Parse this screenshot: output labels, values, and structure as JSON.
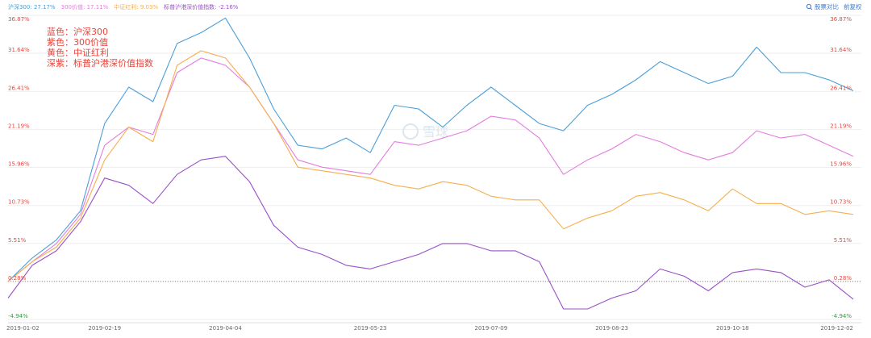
{
  "controls": {
    "compare_label": "股票对比",
    "adjust_label": "前复权"
  },
  "watermark": "雪球",
  "annotation": [
    "蓝色：沪深300",
    "紫色：300价值",
    "黄色：中证红利",
    "深紫：标普沪港深价值指数"
  ],
  "colors": {
    "blue": "#4a9fd8",
    "pink": "#e47ce0",
    "orange": "#f6ae4e",
    "purple": "#9950c8",
    "axis_red": "#e8453c",
    "axis_green": "#2f9e44",
    "grid": "#eeeeee"
  },
  "chart_data": {
    "type": "line",
    "x": [
      "2019-01-02",
      "2019-01-16",
      "2019-01-30",
      "2019-02-13",
      "2019-02-19",
      "2019-02-27",
      "2019-03-08",
      "2019-03-18",
      "2019-03-28",
      "2019-04-04",
      "2019-04-12",
      "2019-04-19",
      "2019-04-26",
      "2019-05-07",
      "2019-05-14",
      "2019-05-23",
      "2019-06-04",
      "2019-06-14",
      "2019-06-24",
      "2019-07-01",
      "2019-07-09",
      "2019-07-17",
      "2019-07-26",
      "2019-08-05",
      "2019-08-13",
      "2019-08-23",
      "2019-09-03",
      "2019-09-12",
      "2019-09-23",
      "2019-10-09",
      "2019-10-18",
      "2019-10-28",
      "2019-11-05",
      "2019-11-14",
      "2019-11-22",
      "2019-12-02"
    ],
    "x_ticks": [
      "2019-01-02",
      "2019-02-19",
      "2019-04-04",
      "2019-05-23",
      "2019-07-09",
      "2019-08-23",
      "2019-10-18",
      "2019-12-02"
    ],
    "y_ticks": [
      "36.87%",
      "31.64%",
      "26.41%",
      "21.19%",
      "15.96%",
      "10.73%",
      "5.51%",
      "0.28%",
      "-4.94%"
    ],
    "ylim": [
      -4.94,
      36.87
    ],
    "baseline": 0.28,
    "series": [
      {
        "name": "沪深300",
        "legend_value": "27.17%",
        "color": "blue",
        "values": [
          0.28,
          3.5,
          6.0,
          10.0,
          22.0,
          27.0,
          25.0,
          33.0,
          34.5,
          36.5,
          31.0,
          24.0,
          19.0,
          18.5,
          20.0,
          18.0,
          24.5,
          24.0,
          21.5,
          24.5,
          27.0,
          24.5,
          22.0,
          21.0,
          24.5,
          26.0,
          28.0,
          30.5,
          29.0,
          27.5,
          28.5,
          32.5,
          29.0,
          29.0,
          28.0,
          26.5
        ]
      },
      {
        "name": "300价值",
        "legend_value": "17.11%",
        "color": "pink",
        "values": [
          0.28,
          3.0,
          5.5,
          9.5,
          19.0,
          21.5,
          20.5,
          29.0,
          31.0,
          30.0,
          27.0,
          22.0,
          17.0,
          16.0,
          15.5,
          15.0,
          19.5,
          19.0,
          20.0,
          21.0,
          23.0,
          22.5,
          20.0,
          15.0,
          17.0,
          18.5,
          20.5,
          19.5,
          18.0,
          17.0,
          18.0,
          21.0,
          20.0,
          20.5,
          19.0,
          17.5
        ]
      },
      {
        "name": "中证红利",
        "legend_value": "9.03%",
        "color": "orange",
        "values": [
          0.28,
          3.0,
          5.0,
          9.0,
          17.0,
          21.5,
          19.5,
          30.0,
          32.0,
          31.0,
          27.0,
          22.0,
          16.0,
          15.5,
          15.0,
          14.5,
          13.5,
          13.0,
          14.0,
          13.5,
          12.0,
          11.5,
          11.5,
          7.5,
          9.0,
          10.0,
          12.0,
          12.5,
          11.5,
          10.0,
          13.0,
          11.0,
          11.0,
          9.5,
          10.0,
          9.5
        ]
      },
      {
        "name": "标普沪港深价值指数",
        "legend_value": "-2.16%",
        "color": "purple",
        "values": [
          -2.0,
          2.5,
          4.5,
          8.5,
          14.5,
          13.5,
          11.0,
          15.0,
          17.0,
          17.5,
          14.0,
          8.0,
          5.0,
          4.0,
          2.5,
          2.0,
          3.0,
          4.0,
          5.5,
          5.5,
          4.5,
          4.5,
          3.0,
          -3.5,
          -3.5,
          -2.0,
          -1.0,
          2.0,
          1.0,
          -1.0,
          1.5,
          2.0,
          1.5,
          -0.5,
          0.5,
          -2.16
        ]
      }
    ]
  }
}
